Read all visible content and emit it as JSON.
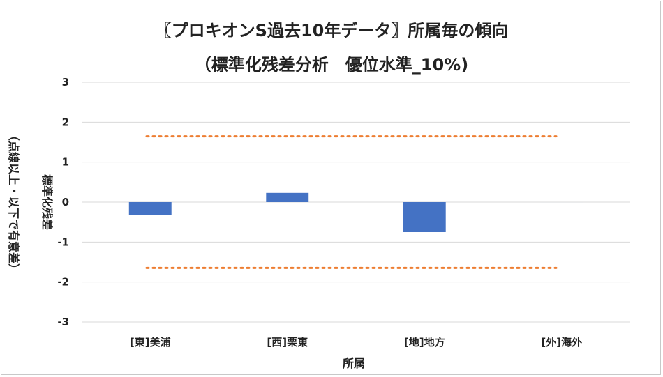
{
  "title": {
    "line1": "〖プロキオンS過去10年データ〗所属毎の傾向",
    "line2": "（標準化残差分析　優位水準_10%)"
  },
  "chart_data": {
    "type": "bar",
    "categories": [
      "[東]美浦",
      "[西]栗東",
      "[地]地方",
      "[外]海外"
    ],
    "series": [
      {
        "values": [
          -0.32,
          0.23,
          -0.75,
          0
        ]
      }
    ],
    "reference_lines": [
      1.645,
      -1.645
    ],
    "xlabel": "所属",
    "ylabel": {
      "line1": "標準化残差",
      "line2": "（点線以上・以下で有意差）"
    },
    "ylim": [
      -3,
      3
    ],
    "yticks": [
      3,
      2,
      1,
      0,
      -1,
      -2,
      -3
    ],
    "grid": true,
    "colors": {
      "bar": "#4472c4",
      "reference": "#ed7d31",
      "grid": "#d9d9d9"
    }
  }
}
